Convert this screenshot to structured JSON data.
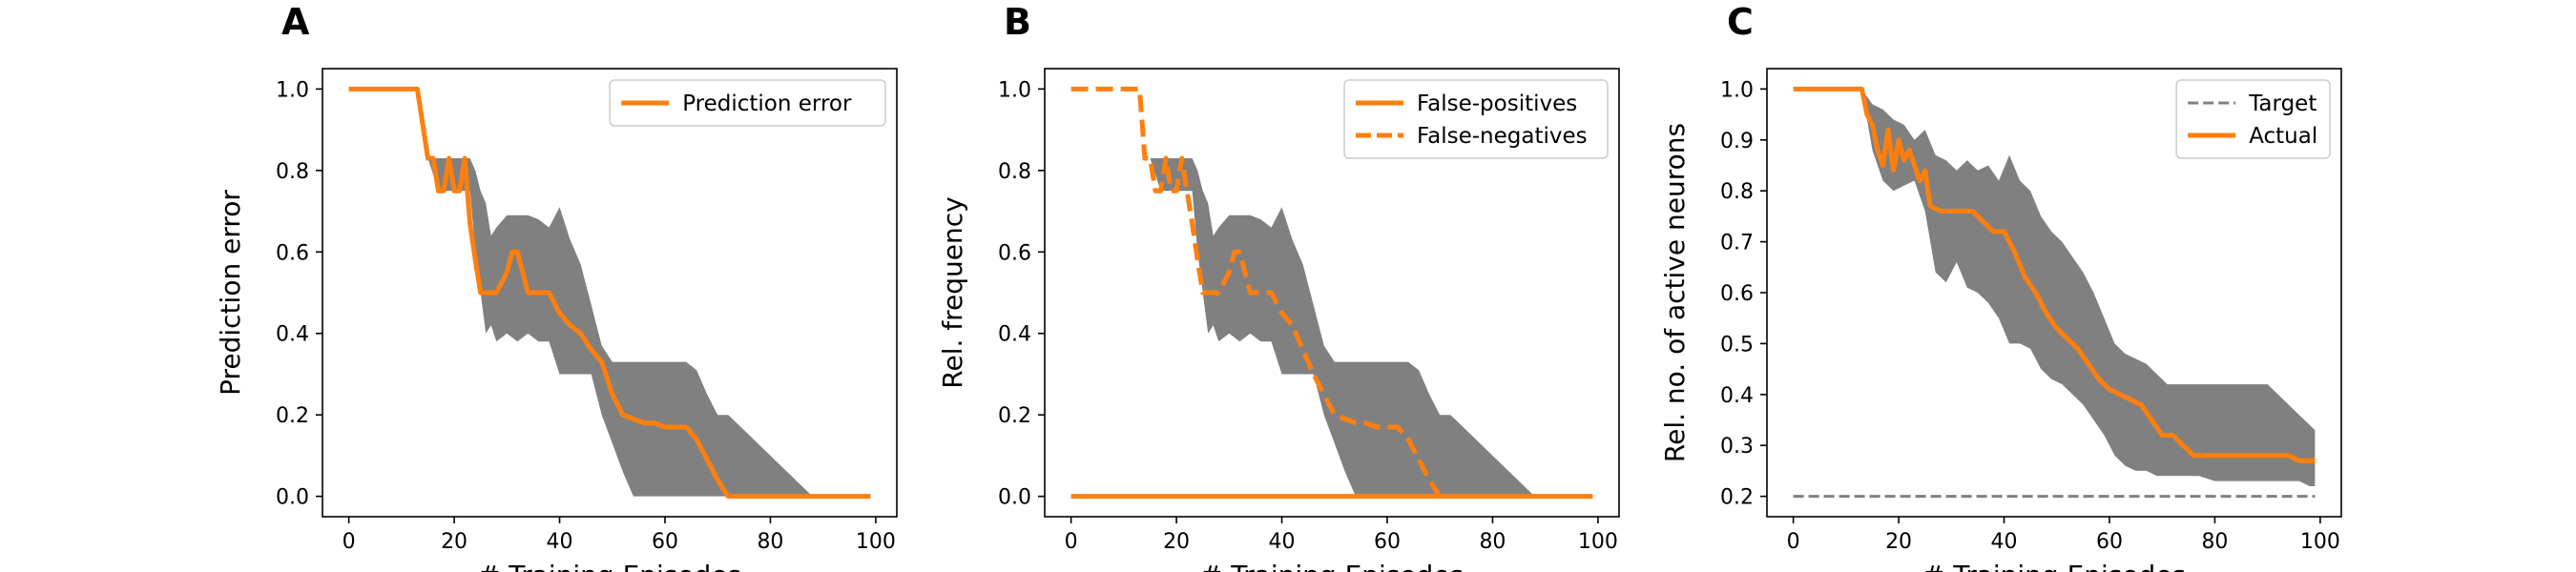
{
  "colors": {
    "line": "#ff7f0e",
    "band": "#808080",
    "target": "#808080",
    "axis": "#000000"
  },
  "chart_data": [
    {
      "type": "line",
      "panel_label": "A",
      "xlabel": "# Training Episodes",
      "ylabel": "Prediction error",
      "xlim": [
        -5,
        104
      ],
      "ylim": [
        -0.05,
        1.05
      ],
      "xticks": [
        0,
        20,
        40,
        60,
        80,
        100
      ],
      "yticks": [
        0.0,
        0.2,
        0.4,
        0.6,
        0.8,
        1.0
      ],
      "ytick_decimals": 1,
      "legend_position": "top-right",
      "series": [
        {
          "name": "Prediction error",
          "style": "solid",
          "x": [
            0,
            13,
            15,
            16,
            17,
            18,
            19,
            20,
            21,
            22,
            23,
            24,
            25,
            26,
            27,
            28,
            30,
            31,
            32,
            33,
            34,
            35,
            36,
            38,
            40,
            42,
            44,
            46,
            48,
            50,
            52,
            54,
            56,
            58,
            60,
            62,
            64,
            66,
            68,
            70,
            71,
            72,
            76,
            80,
            84,
            90,
            99
          ],
          "y": [
            1.0,
            1.0,
            0.83,
            0.83,
            0.75,
            0.75,
            0.83,
            0.75,
            0.75,
            0.83,
            0.67,
            0.58,
            0.5,
            0.5,
            0.5,
            0.5,
            0.55,
            0.6,
            0.6,
            0.55,
            0.5,
            0.5,
            0.5,
            0.5,
            0.45,
            0.42,
            0.4,
            0.36,
            0.33,
            0.25,
            0.2,
            0.19,
            0.18,
            0.18,
            0.17,
            0.17,
            0.17,
            0.14,
            0.09,
            0.04,
            0.02,
            0.0,
            0.0,
            0.0,
            0.0,
            0.0,
            0.0
          ]
        }
      ],
      "band": {
        "x": [
          0,
          13,
          15,
          17,
          19,
          20,
          21,
          22,
          23,
          24,
          25,
          26,
          27,
          28,
          30,
          32,
          34,
          36,
          38,
          40,
          42,
          44,
          46,
          48,
          50,
          52,
          54,
          56,
          58,
          60,
          62,
          64,
          66,
          68,
          70,
          72,
          76,
          80,
          84,
          88,
          90,
          99
        ],
        "upper": [
          1.0,
          1.0,
          0.83,
          0.83,
          0.83,
          0.83,
          0.83,
          0.83,
          0.83,
          0.8,
          0.75,
          0.72,
          0.64,
          0.66,
          0.69,
          0.69,
          0.69,
          0.68,
          0.66,
          0.71,
          0.63,
          0.57,
          0.47,
          0.37,
          0.33,
          0.33,
          0.33,
          0.33,
          0.33,
          0.33,
          0.33,
          0.33,
          0.31,
          0.25,
          0.2,
          0.2,
          0.15,
          0.1,
          0.05,
          0.0,
          0.0,
          0.0
        ],
        "lower": [
          1.0,
          1.0,
          0.83,
          0.75,
          0.75,
          0.75,
          0.75,
          0.75,
          0.75,
          0.6,
          0.5,
          0.4,
          0.42,
          0.38,
          0.4,
          0.38,
          0.4,
          0.38,
          0.38,
          0.3,
          0.3,
          0.3,
          0.3,
          0.2,
          0.13,
          0.06,
          0.0,
          0.0,
          0.0,
          0.0,
          0.0,
          0.0,
          0.0,
          0.0,
          0.0,
          0.0,
          0.0,
          0.0,
          0.0,
          0.0,
          0.0,
          0.0
        ]
      }
    },
    {
      "type": "line",
      "panel_label": "B",
      "xlabel": "# Training Episodes",
      "ylabel": "Rel. frequency",
      "xlim": [
        -5,
        104
      ],
      "ylim": [
        -0.05,
        1.05
      ],
      "xticks": [
        0,
        20,
        40,
        60,
        80,
        100
      ],
      "yticks": [
        0.0,
        0.2,
        0.4,
        0.6,
        0.8,
        1.0
      ],
      "ytick_decimals": 1,
      "legend_position": "top-right",
      "series": [
        {
          "name": "False-positives",
          "style": "solid",
          "x": [
            0,
            99
          ],
          "y": [
            0.0,
            0.0
          ]
        },
        {
          "name": "False-negatives",
          "style": "dashed",
          "x": [
            0,
            13,
            14,
            15,
            16,
            17,
            18,
            19,
            20,
            21,
            22,
            23,
            24,
            25,
            26,
            27,
            28,
            30,
            31,
            32,
            33,
            34,
            35,
            36,
            38,
            40,
            42,
            44,
            46,
            48,
            50,
            52,
            54,
            56,
            58,
            60,
            62,
            64,
            66,
            68,
            70,
            71,
            72,
            76,
            80,
            84,
            90,
            99
          ],
          "y": [
            1.0,
            1.0,
            0.83,
            0.83,
            0.75,
            0.75,
            0.83,
            0.75,
            0.75,
            0.83,
            0.75,
            0.67,
            0.58,
            0.5,
            0.5,
            0.5,
            0.5,
            0.55,
            0.6,
            0.6,
            0.55,
            0.5,
            0.5,
            0.5,
            0.5,
            0.45,
            0.42,
            0.36,
            0.3,
            0.25,
            0.2,
            0.19,
            0.18,
            0.18,
            0.17,
            0.17,
            0.17,
            0.14,
            0.09,
            0.04,
            0.0,
            null,
            null,
            null,
            null,
            null,
            null,
            null
          ]
        }
      ],
      "band": {
        "x": [
          0,
          13,
          15,
          17,
          19,
          20,
          21,
          22,
          23,
          24,
          25,
          26,
          27,
          28,
          30,
          32,
          34,
          36,
          38,
          40,
          42,
          44,
          46,
          48,
          50,
          52,
          54,
          56,
          58,
          60,
          62,
          64,
          66,
          68,
          70,
          72,
          76,
          80,
          84,
          88,
          90,
          99
        ],
        "upper": [
          1.0,
          1.0,
          0.83,
          0.83,
          0.83,
          0.83,
          0.83,
          0.83,
          0.83,
          0.8,
          0.75,
          0.72,
          0.64,
          0.66,
          0.69,
          0.69,
          0.69,
          0.68,
          0.66,
          0.71,
          0.63,
          0.57,
          0.47,
          0.37,
          0.33,
          0.33,
          0.33,
          0.33,
          0.33,
          0.33,
          0.33,
          0.33,
          0.31,
          0.25,
          0.2,
          0.2,
          0.15,
          0.1,
          0.05,
          0.0,
          0.0,
          0.0
        ],
        "lower": [
          1.0,
          1.0,
          0.83,
          0.75,
          0.75,
          0.75,
          0.75,
          0.75,
          0.75,
          0.6,
          0.5,
          0.4,
          0.42,
          0.38,
          0.4,
          0.38,
          0.4,
          0.38,
          0.38,
          0.3,
          0.3,
          0.3,
          0.3,
          0.2,
          0.13,
          0.06,
          0.0,
          0.0,
          0.0,
          0.0,
          0.0,
          0.0,
          0.0,
          0.0,
          0.0,
          0.0,
          0.0,
          0.0,
          0.0,
          0.0,
          0.0,
          0.0
        ]
      }
    },
    {
      "type": "line",
      "panel_label": "C",
      "xlabel": "# Training Episodes",
      "ylabel": "Rel. no. of active neurons",
      "xlim": [
        -5,
        104
      ],
      "ylim": [
        0.16,
        1.04
      ],
      "xticks": [
        0,
        20,
        40,
        60,
        80,
        100
      ],
      "yticks": [
        0.2,
        0.3,
        0.4,
        0.5,
        0.6,
        0.7,
        0.8,
        0.9,
        1.0
      ],
      "ytick_decimals": 1,
      "legend_position": "top-right",
      "series": [
        {
          "name": "Target",
          "style": "dashed-thin",
          "x": [
            0,
            99
          ],
          "y": [
            0.2,
            0.2
          ]
        },
        {
          "name": "Actual",
          "style": "solid",
          "x": [
            0,
            13,
            14,
            15,
            16,
            17,
            18,
            19,
            20,
            21,
            22,
            23,
            24,
            25,
            26,
            28,
            30,
            32,
            34,
            36,
            38,
            40,
            42,
            44,
            46,
            48,
            50,
            52,
            54,
            56,
            58,
            60,
            62,
            64,
            66,
            68,
            70,
            72,
            74,
            76,
            78,
            80,
            84,
            88,
            90,
            92,
            94,
            96,
            99
          ],
          "y": [
            1.0,
            1.0,
            0.95,
            0.93,
            0.88,
            0.85,
            0.92,
            0.84,
            0.9,
            0.86,
            0.88,
            0.85,
            0.82,
            0.84,
            0.77,
            0.76,
            0.76,
            0.76,
            0.76,
            0.74,
            0.72,
            0.72,
            0.68,
            0.63,
            0.6,
            0.56,
            0.53,
            0.51,
            0.49,
            0.46,
            0.43,
            0.41,
            0.4,
            0.39,
            0.38,
            0.35,
            0.32,
            0.32,
            0.3,
            0.28,
            0.28,
            0.28,
            0.28,
            0.28,
            0.28,
            0.28,
            0.28,
            0.27,
            0.27
          ]
        }
      ],
      "band": {
        "x": [
          0,
          13,
          15,
          17,
          19,
          21,
          23,
          25,
          27,
          29,
          31,
          33,
          35,
          37,
          39,
          41,
          43,
          45,
          47,
          49,
          51,
          53,
          55,
          57,
          59,
          61,
          63,
          65,
          67,
          69,
          71,
          73,
          75,
          77,
          80,
          85,
          90,
          94,
          96,
          98,
          99
        ],
        "upper": [
          1.0,
          1.0,
          0.97,
          0.96,
          0.94,
          0.93,
          0.9,
          0.92,
          0.87,
          0.86,
          0.84,
          0.86,
          0.84,
          0.85,
          0.82,
          0.87,
          0.82,
          0.8,
          0.75,
          0.72,
          0.7,
          0.67,
          0.64,
          0.6,
          0.55,
          0.5,
          0.48,
          0.47,
          0.46,
          0.44,
          0.42,
          0.42,
          0.42,
          0.42,
          0.42,
          0.42,
          0.42,
          0.38,
          0.36,
          0.34,
          0.33
        ],
        "lower": [
          1.0,
          1.0,
          0.88,
          0.82,
          0.8,
          0.81,
          0.82,
          0.76,
          0.64,
          0.62,
          0.66,
          0.61,
          0.6,
          0.58,
          0.55,
          0.5,
          0.5,
          0.49,
          0.45,
          0.43,
          0.42,
          0.4,
          0.38,
          0.35,
          0.32,
          0.28,
          0.26,
          0.25,
          0.25,
          0.24,
          0.24,
          0.24,
          0.24,
          0.24,
          0.23,
          0.23,
          0.23,
          0.23,
          0.23,
          0.22,
          0.22
        ]
      }
    }
  ]
}
